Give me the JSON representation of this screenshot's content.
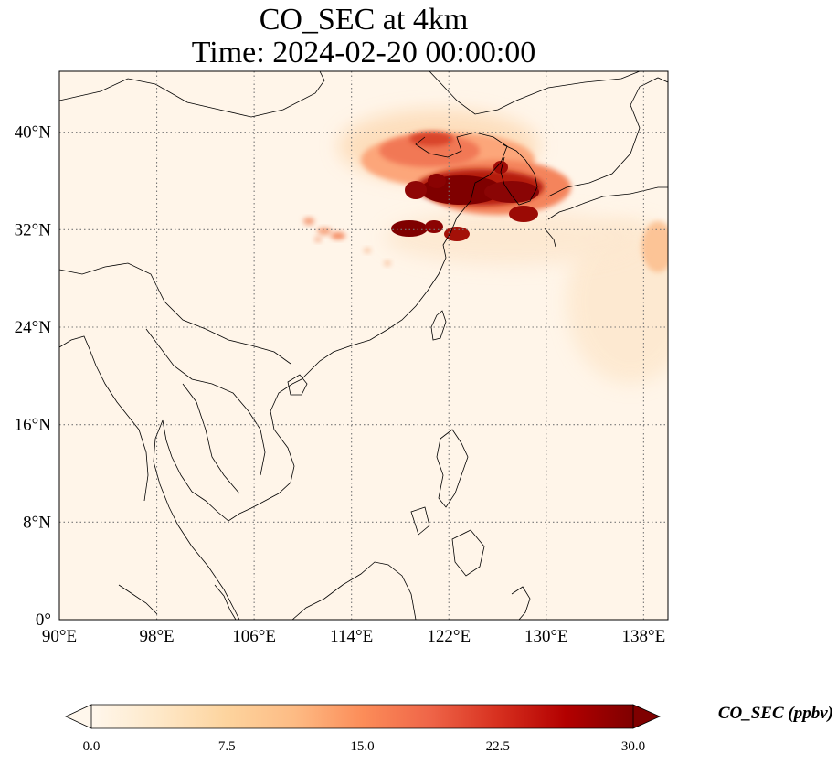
{
  "title": {
    "line1": "CO_SEC at 4km",
    "line2": "Time: 2024-02-20 00:00:00"
  },
  "map": {
    "projection": "PlateCarree",
    "lon_range": [
      90,
      140
    ],
    "lat_range": [
      0,
      45
    ],
    "lon_ticks": [
      "90°E",
      "98°E",
      "106°E",
      "114°E",
      "122°E",
      "130°E",
      "138°E"
    ],
    "lat_ticks": [
      "0°",
      "8°N",
      "16°N",
      "24°N",
      "32°N",
      "40°N"
    ],
    "gridlines": "dotted",
    "features": [
      "coastlines",
      "country borders"
    ]
  },
  "colorbar": {
    "label": "CO_SEC (ppbv)",
    "colormap": "OrRd",
    "range": [
      0,
      30
    ],
    "extend": "both",
    "ticks": [
      "0.0",
      "7.5",
      "15.0",
      "22.5",
      "30.0"
    ],
    "colors": [
      "#fff7ec",
      "#fee8c8",
      "#fdd49e",
      "#fdbb84",
      "#fc8d59",
      "#ef6548",
      "#d7301f",
      "#b30000",
      "#7f0000"
    ]
  }
}
